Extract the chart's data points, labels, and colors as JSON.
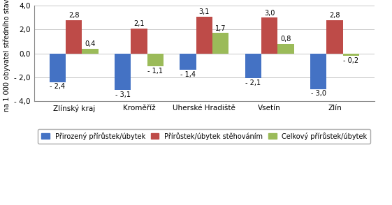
{
  "categories": [
    "Zlínský kraj",
    "Kroměříž",
    "Uherské Hradiště",
    "Vsetín",
    "Zlín"
  ],
  "series": {
    "prirodzeny": [
      -2.4,
      -3.1,
      -1.4,
      -2.1,
      -3.0
    ],
    "sthovanim": [
      2.8,
      2.1,
      3.1,
      3.0,
      2.8
    ],
    "celkovy": [
      0.4,
      -1.1,
      1.7,
      0.8,
      -0.2
    ]
  },
  "colors": {
    "prirodzeny": "#4472C4",
    "sthovanim": "#BE4B48",
    "celkovy": "#9BBB59"
  },
  "ylabel": "na 1 000 obyvatel středního stavu",
  "ylim": [
    -4.0,
    4.0
  ],
  "yticks": [
    -4.0,
    -2.0,
    0.0,
    2.0,
    4.0
  ],
  "ytick_labels": [
    "- 4,0",
    "- 2,0",
    "0,0",
    "2,0",
    "4,0"
  ],
  "legend_labels": [
    "Přirozený přírůstek/úbytek",
    "Přírůstek/úbytek stěhováním",
    "Celkový přírůstek/úbytek"
  ],
  "bar_width": 0.25,
  "label_fontsize": 7.0,
  "axis_fontsize": 7.5,
  "legend_fontsize": 7.0,
  "bg_color": "#FFFFFF",
  "plot_bg_color": "#FFFFFF",
  "grid_color": "#BEBEBE",
  "prirodzeny_labels": [
    "- 2,4",
    "- 3,1",
    "- 1,4",
    "- 2,1",
    "- 3,0"
  ],
  "sthovanim_labels": [
    "2,8",
    "2,1",
    "3,1",
    "3,0",
    "2,8"
  ],
  "celkovy_labels_pos": [
    "0,4",
    "1,7",
    "0,8"
  ],
  "celkovy_labels_neg": [
    "- 1,1",
    "- 0,2"
  ]
}
